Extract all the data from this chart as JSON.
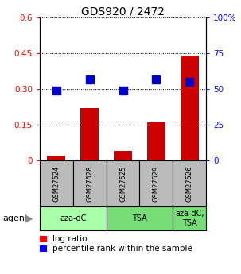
{
  "title": "GDS920 / 2472",
  "samples": [
    "GSM27524",
    "GSM27528",
    "GSM27525",
    "GSM27529",
    "GSM27526"
  ],
  "log_ratio": [
    0.02,
    0.22,
    0.04,
    0.16,
    0.44
  ],
  "percentile_rank": [
    49,
    57,
    49,
    57,
    55
  ],
  "bar_color": "#cc0000",
  "dot_color": "#0000cc",
  "ylim_left": [
    0,
    0.6
  ],
  "ylim_right": [
    0,
    100
  ],
  "yticks_left": [
    0,
    0.15,
    0.3,
    0.45,
    0.6
  ],
  "yticks_right": [
    0,
    25,
    50,
    75,
    100
  ],
  "ytick_labels_left": [
    "0",
    "0.15",
    "0.30",
    "0.45",
    "0.6"
  ],
  "ytick_labels_right": [
    "0",
    "25",
    "50",
    "75",
    "100%"
  ],
  "sample_box_color": "#bbbbbb",
  "group_defs": [
    {
      "indices": [
        0,
        1
      ],
      "label": "aza-dC",
      "color": "#aaffaa"
    },
    {
      "indices": [
        2,
        3
      ],
      "label": "TSA",
      "color": "#77dd77"
    },
    {
      "indices": [
        4
      ],
      "label": "aza-dC,\nTSA",
      "color": "#77dd77"
    }
  ],
  "bar_width": 0.55,
  "dot_size": 45,
  "title_fontsize": 10,
  "tick_fontsize": 7.5,
  "sample_fontsize": 6,
  "agent_fontsize": 8,
  "legend_fontsize": 7.5
}
